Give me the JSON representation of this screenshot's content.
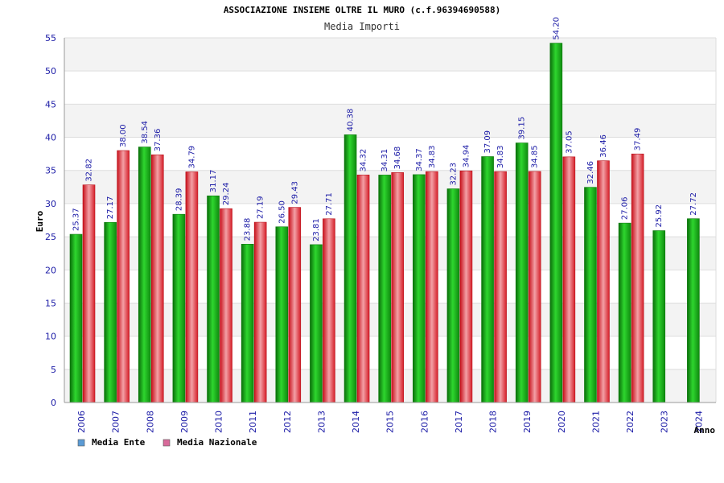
{
  "chart_data": {
    "type": "bar",
    "title": "ASSOCIAZIONE INSIEME OLTRE IL MURO (c.f.96394690588)",
    "subtitle": "Media Importi",
    "xlabel": "Anno",
    "ylabel": "Euro",
    "ylim": [
      0,
      55
    ],
    "yticks": [
      0,
      5,
      10,
      15,
      20,
      25,
      30,
      35,
      40,
      45,
      50,
      55
    ],
    "categories": [
      "2006",
      "2007",
      "2008",
      "2009",
      "2010",
      "2011",
      "2012",
      "2013",
      "2014",
      "2015",
      "2016",
      "2017",
      "2018",
      "2019",
      "2020",
      "2021",
      "2022",
      "2023",
      "2024"
    ],
    "series": [
      {
        "name": "Media Ente",
        "color": "#22bb22",
        "values": [
          25.37,
          27.17,
          38.54,
          28.39,
          31.17,
          23.88,
          26.5,
          23.81,
          40.38,
          34.31,
          34.37,
          32.23,
          37.09,
          39.15,
          54.2,
          32.46,
          27.06,
          25.92,
          27.72
        ],
        "labels": [
          "25.37",
          "27.17",
          "38.54",
          "28.39",
          "31.17",
          "23.88",
          "26.50",
          "23.81",
          "40.38",
          "34.31",
          "34.37",
          "32.23",
          "37.09",
          "39.15",
          "54.20",
          "32.46",
          "27.06",
          "25.92",
          "27.72"
        ]
      },
      {
        "name": "Media Nazionale",
        "color": "#e8303a",
        "values": [
          32.82,
          38.0,
          37.36,
          34.79,
          29.24,
          27.19,
          29.43,
          27.71,
          34.32,
          34.68,
          34.83,
          34.94,
          34.83,
          34.85,
          37.05,
          36.46,
          37.49,
          null,
          null
        ],
        "labels": [
          "32.82",
          "38.00",
          "37.36",
          "34.79",
          "29.24",
          "27.19",
          "29.43",
          "27.71",
          "34.32",
          "34.68",
          "34.83",
          "34.94",
          "34.83",
          "34.85",
          "37.05",
          "36.46",
          "37.49",
          "",
          ""
        ]
      }
    ],
    "legend": {
      "placement": "bottom-left",
      "items": [
        {
          "label": "Media Ente",
          "color": "#5b9bd5"
        },
        {
          "label": "Media Nazionale",
          "color": "#d86a9a"
        }
      ]
    },
    "grid": "horizontal-bands",
    "band_colors": [
      "#ffffff",
      "#f3f3f3"
    ],
    "grid_line_color": "#dddddd"
  }
}
